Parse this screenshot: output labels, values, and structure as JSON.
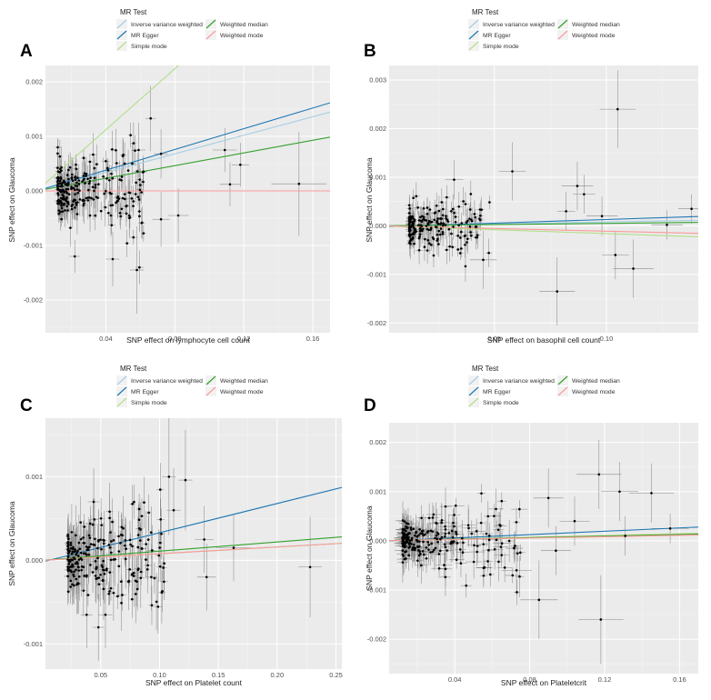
{
  "legend": {
    "title": "MR Test",
    "entries": [
      {
        "label": "Inverse variance weighted",
        "color": "#a6cee3"
      },
      {
        "label": "MR Egger",
        "color": "#1f78b4"
      },
      {
        "label": "Simple mode",
        "color": "#b2df8a"
      },
      {
        "label": "Weighted median",
        "color": "#33a02c"
      },
      {
        "label": "Weighted mode",
        "color": "#fb9a99"
      }
    ]
  },
  "chart_data": [
    {
      "panel": "A",
      "type": "scatter",
      "xlabel": "SNP effect on lymphocyte cell count",
      "ylabel": "SNP effect on Glaucoma",
      "xlim": [
        0.005,
        0.17
      ],
      "ylim": [
        -0.0026,
        0.0023
      ],
      "xticks": [
        0.04,
        0.08,
        0.12,
        0.16
      ],
      "xtick_labels": [
        "0.04",
        "0.08",
        "0.12",
        "0.16"
      ],
      "yticks": [
        -0.002,
        -0.001,
        0.0,
        0.001,
        0.002
      ],
      "ytick_labels": [
        "-0.002",
        "-0.001",
        "0.000",
        "0.001",
        "0.002"
      ],
      "lines": [
        {
          "method": "Inverse variance weighted",
          "slope": 0.0085
        },
        {
          "method": "MR Egger",
          "slope": 0.0095,
          "intercept": 0.0
        },
        {
          "method": "Simple mode",
          "slope": 0.028
        },
        {
          "method": "Weighted median",
          "slope": 0.0058
        },
        {
          "method": "Weighted mode",
          "slope": 0.0
        }
      ],
      "highlight_points": [
        {
          "x": 0.066,
          "y": 0.00133,
          "xerr": 0.003,
          "yerr": 0.0006
        },
        {
          "x": 0.109,
          "y": 0.00075,
          "xerr": 0.007,
          "yerr": 0.0004
        },
        {
          "x": 0.118,
          "y": 0.00048,
          "xerr": 0.005,
          "yerr": 0.0004
        },
        {
          "x": 0.152,
          "y": 0.00013,
          "xerr": 0.016,
          "yerr": 0.00095
        },
        {
          "x": 0.112,
          "y": 0.00012,
          "xerr": 0.006,
          "yerr": 0.0004
        },
        {
          "x": 0.072,
          "y": 0.00068,
          "xerr": 0.004,
          "yerr": 0.00045
        },
        {
          "x": 0.058,
          "y": -0.00145,
          "xerr": 0.004,
          "yerr": 0.0008
        },
        {
          "x": 0.044,
          "y": -0.00125,
          "xerr": 0.004,
          "yerr": 0.0005
        },
        {
          "x": 0.022,
          "y": -0.0012,
          "xerr": 0.003,
          "yerr": 0.0003
        },
        {
          "x": 0.082,
          "y": -0.00045,
          "xerr": 0.006,
          "yerr": 0.0005
        },
        {
          "x": 0.072,
          "y": -0.00052,
          "xerr": 0.005,
          "yerr": 0.0005
        },
        {
          "x": 0.059,
          "y": 0.00075,
          "xerr": 0.004,
          "yerr": 0.0005
        }
      ],
      "cluster": {
        "xmin": 0.012,
        "xmax": 0.062,
        "xmean": 0.024,
        "ysd": 0.00032,
        "n": 260,
        "yerr_base": 0.00022,
        "xerr_base": 0.002,
        "seed": 11
      }
    },
    {
      "panel": "B",
      "type": "scatter",
      "xlabel": "SNP effect on basophil cell count",
      "ylabel": "SNP effect on Glaucoma",
      "xlim": [
        0.003,
        0.141
      ],
      "ylim": [
        -0.0022,
        0.0033
      ],
      "xticks": [
        0.05,
        0.1
      ],
      "xtick_labels": [
        "0.05",
        "0.10"
      ],
      "yticks": [
        -0.002,
        -0.001,
        0.0,
        0.001,
        0.002,
        0.003
      ],
      "ytick_labels": [
        "-0.002",
        "-0.001",
        "0.000",
        "0.001",
        "0.002",
        "0.003"
      ],
      "lines": [
        {
          "method": "Inverse variance weighted",
          "slope": 0.0008
        },
        {
          "method": "MR Egger",
          "slope": 0.0015,
          "intercept": -2e-05
        },
        {
          "method": "Simple mode",
          "slope": -0.0016
        },
        {
          "method": "Weighted median",
          "slope": 0.0005
        },
        {
          "method": "Weighted mode",
          "slope": -0.0011
        }
      ],
      "highlight_points": [
        {
          "x": 0.105,
          "y": 0.0024,
          "xerr": 0.008,
          "yerr": 0.0008
        },
        {
          "x": 0.058,
          "y": 0.00112,
          "xerr": 0.006,
          "yerr": 0.0006
        },
        {
          "x": 0.087,
          "y": 0.00082,
          "xerr": 0.007,
          "yerr": 0.0005
        },
        {
          "x": 0.098,
          "y": 0.0002,
          "xerr": 0.007,
          "yerr": 0.0004
        },
        {
          "x": 0.078,
          "y": -0.00135,
          "xerr": 0.008,
          "yerr": 0.0007
        },
        {
          "x": 0.112,
          "y": -0.00088,
          "xerr": 0.009,
          "yerr": 0.0006
        },
        {
          "x": 0.045,
          "y": -0.0007,
          "xerr": 0.006,
          "yerr": 0.0006
        },
        {
          "x": 0.104,
          "y": -0.0006,
          "xerr": 0.006,
          "yerr": 0.0005
        },
        {
          "x": 0.138,
          "y": 0.00035,
          "xerr": 0.006,
          "yerr": 0.0003
        },
        {
          "x": 0.127,
          "y": 2e-05,
          "xerr": 0.007,
          "yerr": 0.0003
        },
        {
          "x": 0.09,
          "y": 0.00065,
          "xerr": 0.005,
          "yerr": 0.0004
        },
        {
          "x": 0.082,
          "y": 0.0003,
          "xerr": 0.004,
          "yerr": 0.0004
        },
        {
          "x": 0.032,
          "y": 0.00095,
          "xerr": 0.004,
          "yerr": 0.0004
        }
      ],
      "cluster": {
        "xmin": 0.012,
        "xmax": 0.048,
        "xmean": 0.02,
        "ysd": 0.00025,
        "n": 210,
        "yerr_base": 0.00018,
        "xerr_base": 0.0015,
        "seed": 23
      }
    },
    {
      "panel": "C",
      "type": "scatter",
      "xlabel": "SNP effect on Platelet count",
      "ylabel": "SNP effect on Glaucoma",
      "xlim": [
        0.003,
        0.255
      ],
      "ylim": [
        -0.0013,
        0.0017
      ],
      "xticks": [
        0.05,
        0.1,
        0.15,
        0.2,
        0.25
      ],
      "xtick_labels": [
        "0.05",
        "0.10",
        "0.15",
        "0.20",
        "0.25"
      ],
      "yticks": [
        -0.001,
        0.0,
        0.001
      ],
      "ytick_labels": [
        "-0.001",
        "0.000",
        "0.001"
      ],
      "lines": [
        {
          "method": "Inverse variance weighted",
          "slope": 0.0008
        },
        {
          "method": "MR Egger",
          "slope": 0.0035,
          "intercept": -2e-05
        },
        {
          "method": "Simple mode",
          "slope": 0.0008
        },
        {
          "method": "Weighted median",
          "slope": 0.0011
        },
        {
          "method": "Weighted mode",
          "slope": 0.0008
        }
      ],
      "highlight_points": [
        {
          "x": 0.108,
          "y": 0.001,
          "xerr": 0.006,
          "yerr": 0.0007
        },
        {
          "x": 0.122,
          "y": 0.00096,
          "xerr": 0.006,
          "yerr": 0.0006
        },
        {
          "x": 0.112,
          "y": 0.0006,
          "xerr": 0.006,
          "yerr": 0.0005
        },
        {
          "x": 0.228,
          "y": -8e-05,
          "xerr": 0.01,
          "yerr": 0.0006
        },
        {
          "x": 0.163,
          "y": 0.00015,
          "xerr": 0.015,
          "yerr": 0.0004
        },
        {
          "x": 0.138,
          "y": 0.00025,
          "xerr": 0.008,
          "yerr": 0.0004
        },
        {
          "x": 0.14,
          "y": -0.0002,
          "xerr": 0.008,
          "yerr": 0.0004
        },
        {
          "x": 0.054,
          "y": -0.00065,
          "xerr": 0.006,
          "yerr": 0.0004
        },
        {
          "x": 0.038,
          "y": -0.00065,
          "xerr": 0.005,
          "yerr": 0.0004
        },
        {
          "x": 0.048,
          "y": -0.0008,
          "xerr": 0.005,
          "yerr": 0.0004
        },
        {
          "x": 0.093,
          "y": -0.0002,
          "xerr": 0.005,
          "yerr": 0.0004
        },
        {
          "x": 0.044,
          "y": 0.0007,
          "xerr": 0.005,
          "yerr": 0.0004
        }
      ],
      "cluster": {
        "xmin": 0.022,
        "xmax": 0.105,
        "xmean": 0.04,
        "ysd": 0.00026,
        "n": 240,
        "yerr_base": 0.00022,
        "xerr_base": 0.003,
        "seed": 37
      }
    },
    {
      "panel": "D",
      "type": "scatter",
      "xlabel": "SNP effect on Plateletcrit",
      "ylabel": "SNP effect on Glaucoma",
      "xlim": [
        0.005,
        0.17
      ],
      "ylim": [
        -0.0027,
        0.0024
      ],
      "xticks": [
        0.04,
        0.08,
        0.12,
        0.16
      ],
      "xtick_labels": [
        "0.04",
        "0.08",
        "0.12",
        "0.16"
      ],
      "yticks": [
        -0.002,
        -0.001,
        0.0,
        0.001,
        0.002
      ],
      "ytick_labels": [
        "-0.002",
        "-0.001",
        "0.000",
        "0.001",
        "0.002"
      ],
      "lines": [
        {
          "method": "Inverse variance weighted",
          "slope": 0.0008
        },
        {
          "method": "MR Egger",
          "slope": 0.0017,
          "intercept": -1e-05
        },
        {
          "method": "Simple mode",
          "slope": 0.0009
        },
        {
          "method": "Weighted median",
          "slope": 0.0008
        },
        {
          "method": "Weighted mode",
          "slope": 0.0007
        }
      ],
      "highlight_points": [
        {
          "x": 0.117,
          "y": 0.00135,
          "xerr": 0.012,
          "yerr": 0.0007
        },
        {
          "x": 0.145,
          "y": 0.00097,
          "xerr": 0.012,
          "yerr": 0.0006
        },
        {
          "x": 0.128,
          "y": 0.001,
          "xerr": 0.01,
          "yerr": 0.0006
        },
        {
          "x": 0.09,
          "y": 0.00087,
          "xerr": 0.008,
          "yerr": 0.0006
        },
        {
          "x": 0.155,
          "y": 0.00025,
          "xerr": 0.01,
          "yerr": 0.0003
        },
        {
          "x": 0.118,
          "y": -0.0016,
          "xerr": 0.012,
          "yerr": 0.0009
        },
        {
          "x": 0.085,
          "y": -0.0012,
          "xerr": 0.01,
          "yerr": 0.0008
        },
        {
          "x": 0.073,
          "y": -0.0006,
          "xerr": 0.008,
          "yerr": 0.0005
        },
        {
          "x": 0.104,
          "y": 0.0004,
          "xerr": 0.008,
          "yerr": 0.0005
        },
        {
          "x": 0.131,
          "y": 0.0001,
          "xerr": 0.009,
          "yerr": 0.0004
        },
        {
          "x": 0.094,
          "y": -0.0002,
          "xerr": 0.008,
          "yerr": 0.0005
        }
      ],
      "cluster": {
        "xmin": 0.012,
        "xmax": 0.075,
        "xmean": 0.03,
        "ysd": 0.00027,
        "n": 230,
        "yerr_base": 0.00024,
        "xerr_base": 0.004,
        "seed": 53
      }
    }
  ]
}
